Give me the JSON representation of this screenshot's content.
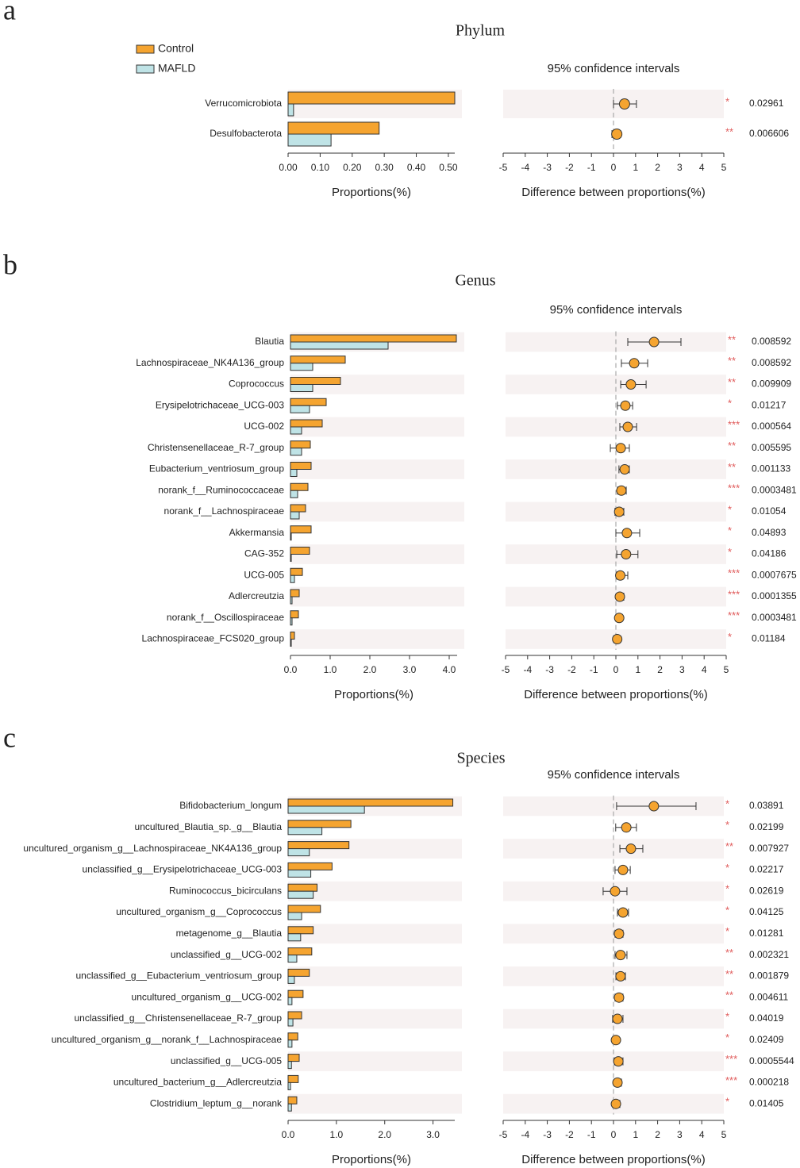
{
  "chart_data": [
    {
      "type": "bar",
      "orientation": "horizontal",
      "panel_label": "a",
      "title": "Phylum",
      "xlabel": "Proportions(%)",
      "categories": [
        "Verrucomicrobiota",
        "Desulfobacterota"
      ],
      "series": [
        {
          "name": "Control",
          "color": "#f5a430",
          "values": [
            0.52,
            0.284
          ]
        },
        {
          "name": "MAFLD",
          "color": "#bfe3e6",
          "values": [
            0.017,
            0.134
          ]
        }
      ],
      "xlim": [
        0,
        0.52
      ],
      "xticks": [
        {
          "value": 0,
          "label": "0.00"
        },
        {
          "value": 0.1,
          "label": "0.10"
        },
        {
          "value": 0.2,
          "label": "0.20"
        },
        {
          "value": 0.3,
          "label": "0.30"
        },
        {
          "value": 0.4,
          "label": "0.40"
        },
        {
          "value": 0.5,
          "label": "0.50"
        }
      ],
      "legend": "top-left"
    },
    {
      "type": "errorbar",
      "title": "95% confidence intervals",
      "xlabel": "Difference between proportions(%)",
      "color": "#f5a430",
      "values": [
        0.5,
        0.15
      ],
      "lower": [
        0,
        -0.07
      ],
      "upper": [
        1.04,
        0.32
      ],
      "significance": [
        "*",
        "**"
      ],
      "p_values": [
        0.02961,
        0.006606
      ],
      "xlim": [
        -5,
        5
      ],
      "xticks": [
        -5,
        -4,
        -3,
        -2,
        -1,
        0,
        1,
        2,
        3,
        4,
        5
      ]
    },
    {
      "type": "bar",
      "orientation": "horizontal",
      "panel_label": "b",
      "title": "Genus",
      "xlabel": "Proportions(%)",
      "categories": [
        "Blautia",
        "Lachnospiraceae_NK4A136_group",
        "Coprococcus",
        "Erysipelotrichaceae_UCG-003",
        "UCG-002",
        "Christensenellaceae_R-7_group",
        "Eubacterium_ventriosum_group",
        "norank_f__Ruminococcaceae",
        "norank_f__Lachnospiraceae",
        "Akkermansia",
        "CAG-352",
        "UCG-005",
        "Adlercreutzia",
        "norank_f__Oscillospiraceae",
        "Lachnospiraceae_FCS020_group"
      ],
      "series": [
        {
          "color": "#f5a430",
          "values": [
            4.18,
            1.38,
            1.26,
            0.9,
            0.8,
            0.5,
            0.52,
            0.44,
            0.38,
            0.52,
            0.48,
            0.3,
            0.22,
            0.2,
            0.1
          ]
        },
        {
          "color": "#bfe3e6",
          "values": [
            2.46,
            0.56,
            0.56,
            0.48,
            0.28,
            0.28,
            0.16,
            0.18,
            0.22,
            0.02,
            0.02,
            0.1,
            0.04,
            0.04,
            0.02
          ]
        }
      ],
      "xlim": [
        0,
        4.2
      ],
      "xticks": [
        {
          "value": 0,
          "label": "0.0"
        },
        {
          "value": 1,
          "label": "1.0"
        },
        {
          "value": 2,
          "label": "2.0"
        },
        {
          "value": 3,
          "label": "3.0"
        },
        {
          "value": 4,
          "label": "4.0"
        }
      ]
    },
    {
      "type": "errorbar",
      "title": "95% confidence intervals",
      "xlabel": "Difference between proportions(%)",
      "color": "#f5a430",
      "values": [
        1.73,
        0.83,
        0.68,
        0.43,
        0.54,
        0.22,
        0.4,
        0.25,
        0.15,
        0.5,
        0.46,
        0.2,
        0.18,
        0.15,
        0.06
      ],
      "lower": [
        0.54,
        0.25,
        0.22,
        0.07,
        0.18,
        -0.25,
        0.14,
        0.07,
        -0.04,
        0,
        0.04,
        0.04,
        0.04,
        0.01,
        -0.1
      ],
      "upper": [
        2.95,
        1.44,
        1.37,
        0.76,
        0.94,
        0.61,
        0.61,
        0.47,
        0.36,
        1.08,
        1,
        0.54,
        0.36,
        0.29,
        0.2
      ],
      "significance": [
        "**",
        "**",
        "**",
        "*",
        "***",
        "**",
        "**",
        "***",
        "*",
        "*",
        "*",
        "***",
        "***",
        "***",
        "*"
      ],
      "p_values": [
        0.008592,
        0.008592,
        0.009909,
        0.01217,
        0.000564,
        0.005595,
        0.001133,
        0.0003481,
        0.01054,
        0.04893,
        0.04186,
        0.0007675,
        0.0001355,
        0.0003481,
        0.01184
      ],
      "xlim": [
        -5,
        5
      ],
      "xticks": [
        -5,
        -4,
        -3,
        -2,
        -1,
        0,
        1,
        2,
        3,
        4,
        5
      ]
    },
    {
      "type": "bar",
      "orientation": "horizontal",
      "panel_label": "c",
      "title": "Species",
      "xlabel": "Proportions(%)",
      "categories": [
        "Bifidobacterium_longum",
        "uncultured_Blautia_sp._g__Blautia",
        "uncultured_organism_g__Lachnospiraceae_NK4A136_group",
        "unclassified_g__Erysipelotrichaceae_UCG-003",
        "Ruminococcus_bicirculans",
        "uncultured_organism_g__Coprococcus",
        "metagenome_g__Blautia",
        "unclassified_g__UCG-002",
        "unclassified_g__Eubacterium_ventriosum_group",
        "uncultured_organism_g__UCG-002",
        "unclassified_g__Christensenellaceae_R-7_group",
        "uncultured_organism_g__norank_f__Lachnospiraceae",
        "unclassified_g__UCG-005",
        "uncultured_bacterium_g__Adlercreutzia",
        "Clostridium_leptum_g__norank"
      ],
      "series": [
        {
          "color": "#f5a430",
          "values": [
            3.41,
            1.3,
            1.26,
            0.91,
            0.6,
            0.67,
            0.52,
            0.49,
            0.44,
            0.31,
            0.28,
            0.2,
            0.23,
            0.21,
            0.18
          ]
        },
        {
          "color": "#bfe3e6",
          "values": [
            1.58,
            0.7,
            0.44,
            0.47,
            0.52,
            0.28,
            0.26,
            0.18,
            0.13,
            0.08,
            0.1,
            0.08,
            0.07,
            0.05,
            0.07
          ]
        }
      ],
      "xlim": [
        0,
        3.45
      ],
      "xticks": [
        {
          "value": 0,
          "label": "0.0"
        },
        {
          "value": 1,
          "label": "1.0"
        },
        {
          "value": 2,
          "label": "2.0"
        },
        {
          "value": 3,
          "label": "3.0"
        }
      ]
    },
    {
      "type": "errorbar",
      "title": "95% confidence intervals",
      "xlabel": "Difference between proportions(%)",
      "color": "#f5a430",
      "values": [
        1.83,
        0.58,
        0.79,
        0.43,
        0.07,
        0.43,
        0.25,
        0.32,
        0.32,
        0.25,
        0.18,
        0.11,
        0.22,
        0.18,
        0.11
      ],
      "lower": [
        0.14,
        0.1,
        0.29,
        0.07,
        -0.47,
        0.18,
        0.07,
        0.07,
        0.11,
        0.07,
        -0.04,
        -0.04,
        0.04,
        0.04,
        -0.04
      ],
      "upper": [
        3.74,
        1.04,
        1.33,
        0.76,
        0.61,
        0.68,
        0.43,
        0.61,
        0.54,
        0.43,
        0.43,
        0.25,
        0.43,
        0.36,
        0.29
      ],
      "significance": [
        "*",
        "*",
        "**",
        "*",
        "*",
        "*",
        "*",
        "**",
        "**",
        "**",
        "*",
        "*",
        "***",
        "***",
        "*"
      ],
      "p_values": [
        0.03891,
        0.02199,
        0.007927,
        0.02217,
        0.02619,
        0.04125,
        0.01281,
        0.002321,
        0.001879,
        0.004611,
        0.04019,
        0.02409,
        0.0005544,
        0.000218,
        0.01405
      ],
      "xlim": [
        -5,
        5
      ],
      "xticks": [
        -5,
        -4,
        -3,
        -2,
        -1,
        0,
        1,
        2,
        3,
        4,
        5
      ]
    }
  ]
}
